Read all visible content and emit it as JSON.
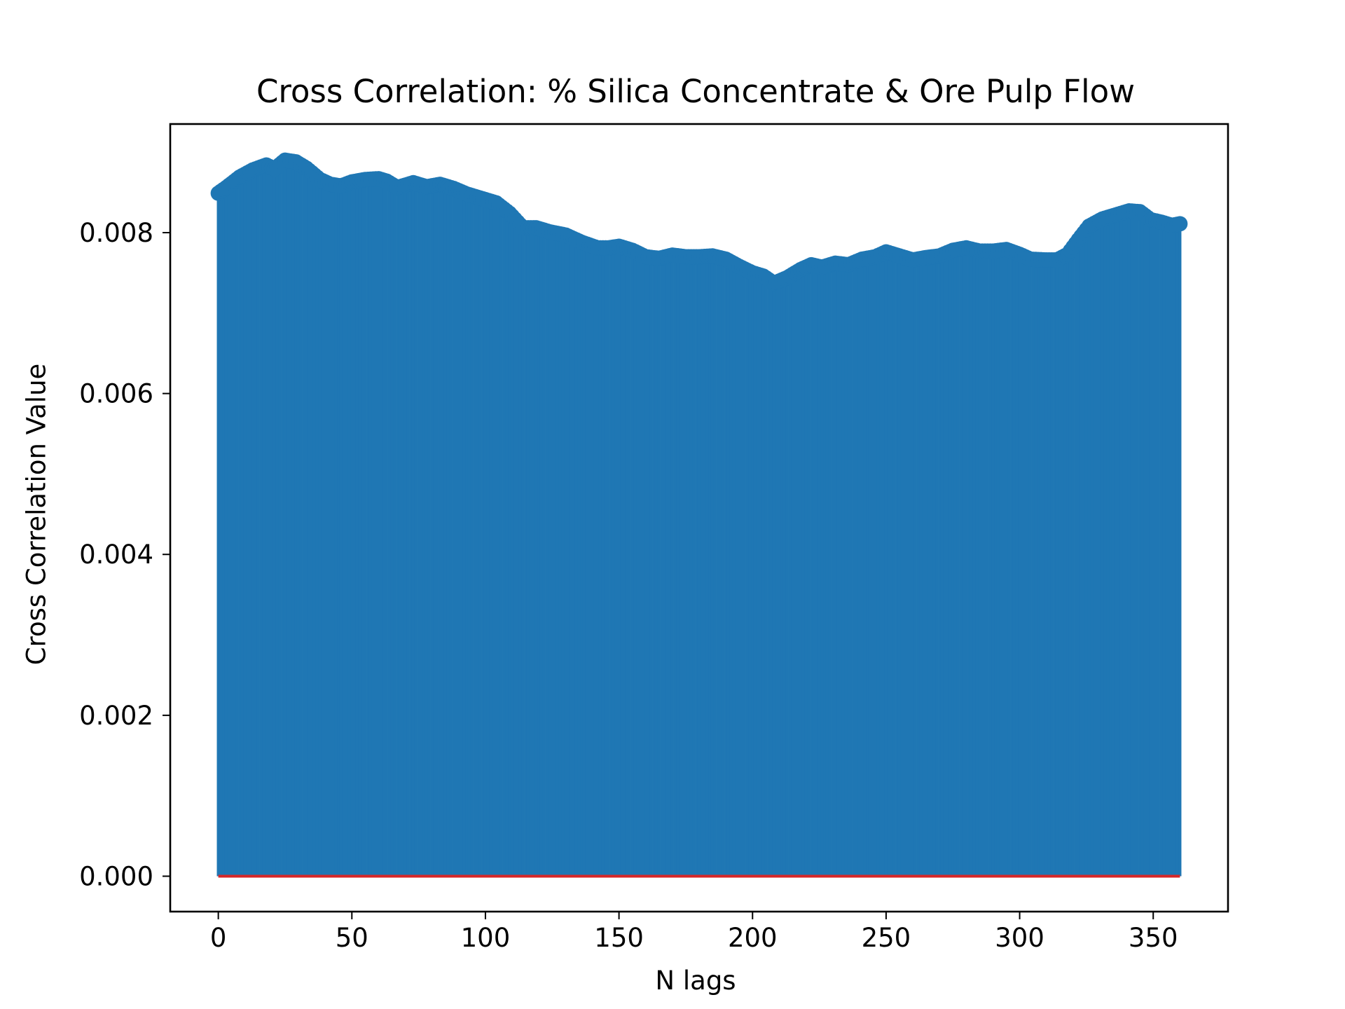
{
  "chart_data": {
    "type": "stem",
    "title": "Cross Correlation: % Silica Concentrate & Ore Pulp Flow",
    "xlabel": "N lags",
    "ylabel": "Cross Correlation Value",
    "xlim": [
      -18,
      378
    ],
    "ylim": [
      -0.00044,
      0.00935
    ],
    "xticks": [
      0,
      50,
      100,
      150,
      200,
      250,
      300,
      350
    ],
    "yticks": [
      0.0,
      0.002,
      0.004,
      0.006,
      0.008
    ],
    "ytick_labels": [
      "0.000",
      "0.002",
      "0.004",
      "0.006",
      "0.008"
    ],
    "baseline": 0,
    "colors": {
      "stem": "#1f77b4",
      "baseline": "#d62728"
    },
    "series": [
      {
        "x_start": 0,
        "x_end": 360,
        "anchors": [
          [
            0,
            0.00849
          ],
          [
            3,
            0.00856
          ],
          [
            8,
            0.00869
          ],
          [
            13,
            0.00878
          ],
          [
            18,
            0.00884
          ],
          [
            21,
            0.00879
          ],
          [
            25,
            0.0089
          ],
          [
            29,
            0.00888
          ],
          [
            33,
            0.0088
          ],
          [
            38,
            0.00866
          ],
          [
            42,
            0.0086
          ],
          [
            46,
            0.00858
          ],
          [
            50,
            0.00863
          ],
          [
            55,
            0.00866
          ],
          [
            60,
            0.00867
          ],
          [
            63,
            0.00864
          ],
          [
            67,
            0.00856
          ],
          [
            73,
            0.00862
          ],
          [
            78,
            0.00857
          ],
          [
            83,
            0.0086
          ],
          [
            88,
            0.00855
          ],
          [
            93,
            0.00848
          ],
          [
            98,
            0.00843
          ],
          [
            104,
            0.00837
          ],
          [
            109,
            0.00824
          ],
          [
            114,
            0.00806
          ],
          [
            119,
            0.00806
          ],
          [
            124,
            0.00801
          ],
          [
            130,
            0.00797
          ],
          [
            136,
            0.00788
          ],
          [
            142,
            0.00781
          ],
          [
            146,
            0.00781
          ],
          [
            150,
            0.00783
          ],
          [
            155,
            0.00778
          ],
          [
            160,
            0.0077
          ],
          [
            165,
            0.00768
          ],
          [
            170,
            0.00772
          ],
          [
            175,
            0.0077
          ],
          [
            180,
            0.0077
          ],
          [
            185,
            0.00771
          ],
          [
            190,
            0.00767
          ],
          [
            195,
            0.00758
          ],
          [
            200,
            0.0075
          ],
          [
            204,
            0.00746
          ],
          [
            208,
            0.00737
          ],
          [
            213,
            0.00744
          ],
          [
            218,
            0.00754
          ],
          [
            222,
            0.0076
          ],
          [
            226,
            0.00757
          ],
          [
            231,
            0.00762
          ],
          [
            236,
            0.0076
          ],
          [
            241,
            0.00767
          ],
          [
            246,
            0.0077
          ],
          [
            250,
            0.00776
          ],
          [
            255,
            0.00771
          ],
          [
            260,
            0.00766
          ],
          [
            265,
            0.00769
          ],
          [
            270,
            0.00771
          ],
          [
            275,
            0.00778
          ],
          [
            280,
            0.00781
          ],
          [
            285,
            0.00777
          ],
          [
            290,
            0.00777
          ],
          [
            295,
            0.00779
          ],
          [
            300,
            0.00773
          ],
          [
            304,
            0.00767
          ],
          [
            310,
            0.00766
          ],
          [
            314,
            0.00766
          ],
          [
            318,
            0.00773
          ],
          [
            322,
            0.00791
          ],
          [
            326,
            0.00808
          ],
          [
            331,
            0.00817
          ],
          [
            336,
            0.00822
          ],
          [
            341,
            0.00827
          ],
          [
            345,
            0.00826
          ],
          [
            349,
            0.00816
          ],
          [
            353,
            0.00813
          ],
          [
            357,
            0.00809
          ],
          [
            360,
            0.00811
          ]
        ]
      }
    ]
  }
}
